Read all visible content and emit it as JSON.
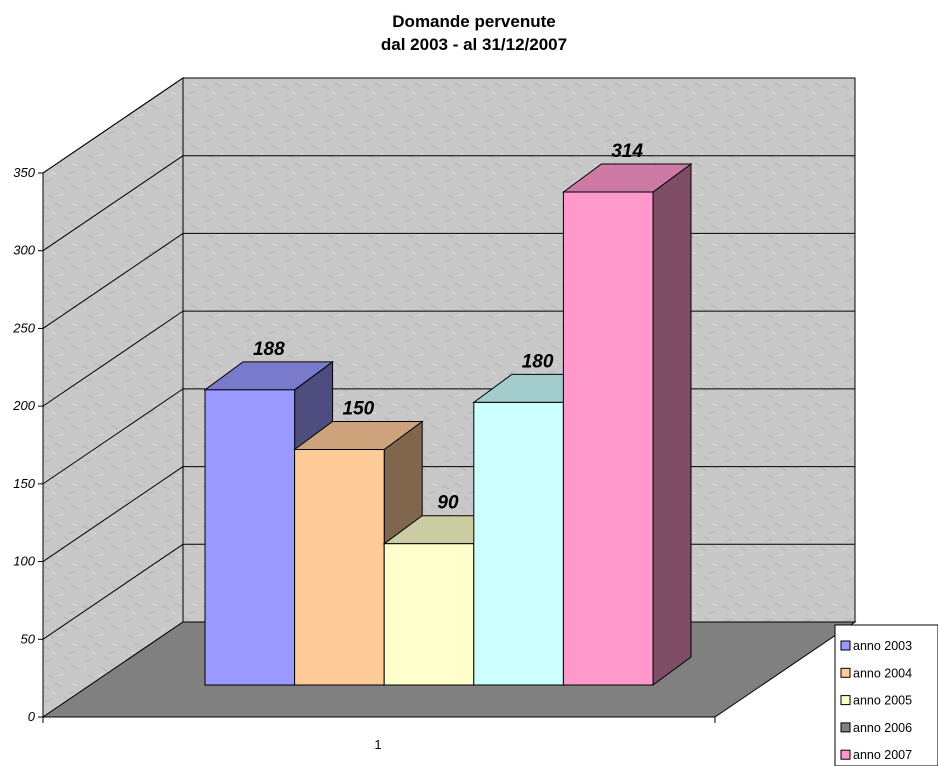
{
  "chart_data": {
    "type": "bar",
    "title": "Domande pervenute",
    "subtitle": "dal 2003 - al 31/12/2007",
    "categories": [
      "1"
    ],
    "series": [
      {
        "name": "anno 2003",
        "values": [
          188
        ]
      },
      {
        "name": "anno 2004",
        "values": [
          150
        ]
      },
      {
        "name": "anno 2005",
        "values": [
          90
        ]
      },
      {
        "name": "anno 2006",
        "values": [
          180
        ]
      },
      {
        "name": "anno 2007",
        "values": [
          314
        ]
      }
    ],
    "ylim": [
      0,
      350
    ],
    "yticks": [
      "0",
      "50",
      "100",
      "150",
      "200",
      "250",
      "300",
      "350"
    ],
    "grid": true,
    "three_d": true,
    "legend_position": "right",
    "colors": {
      "anno 2003": "#9999ff",
      "anno 2004": "#ffcc99",
      "anno 2005": "#ffffcc",
      "anno 2006": "#ccffff",
      "anno 2007": "#ff99cc",
      "legend_2006_swatch": "#808080",
      "wall": "#c9c9c9",
      "floor": "#808080"
    }
  }
}
